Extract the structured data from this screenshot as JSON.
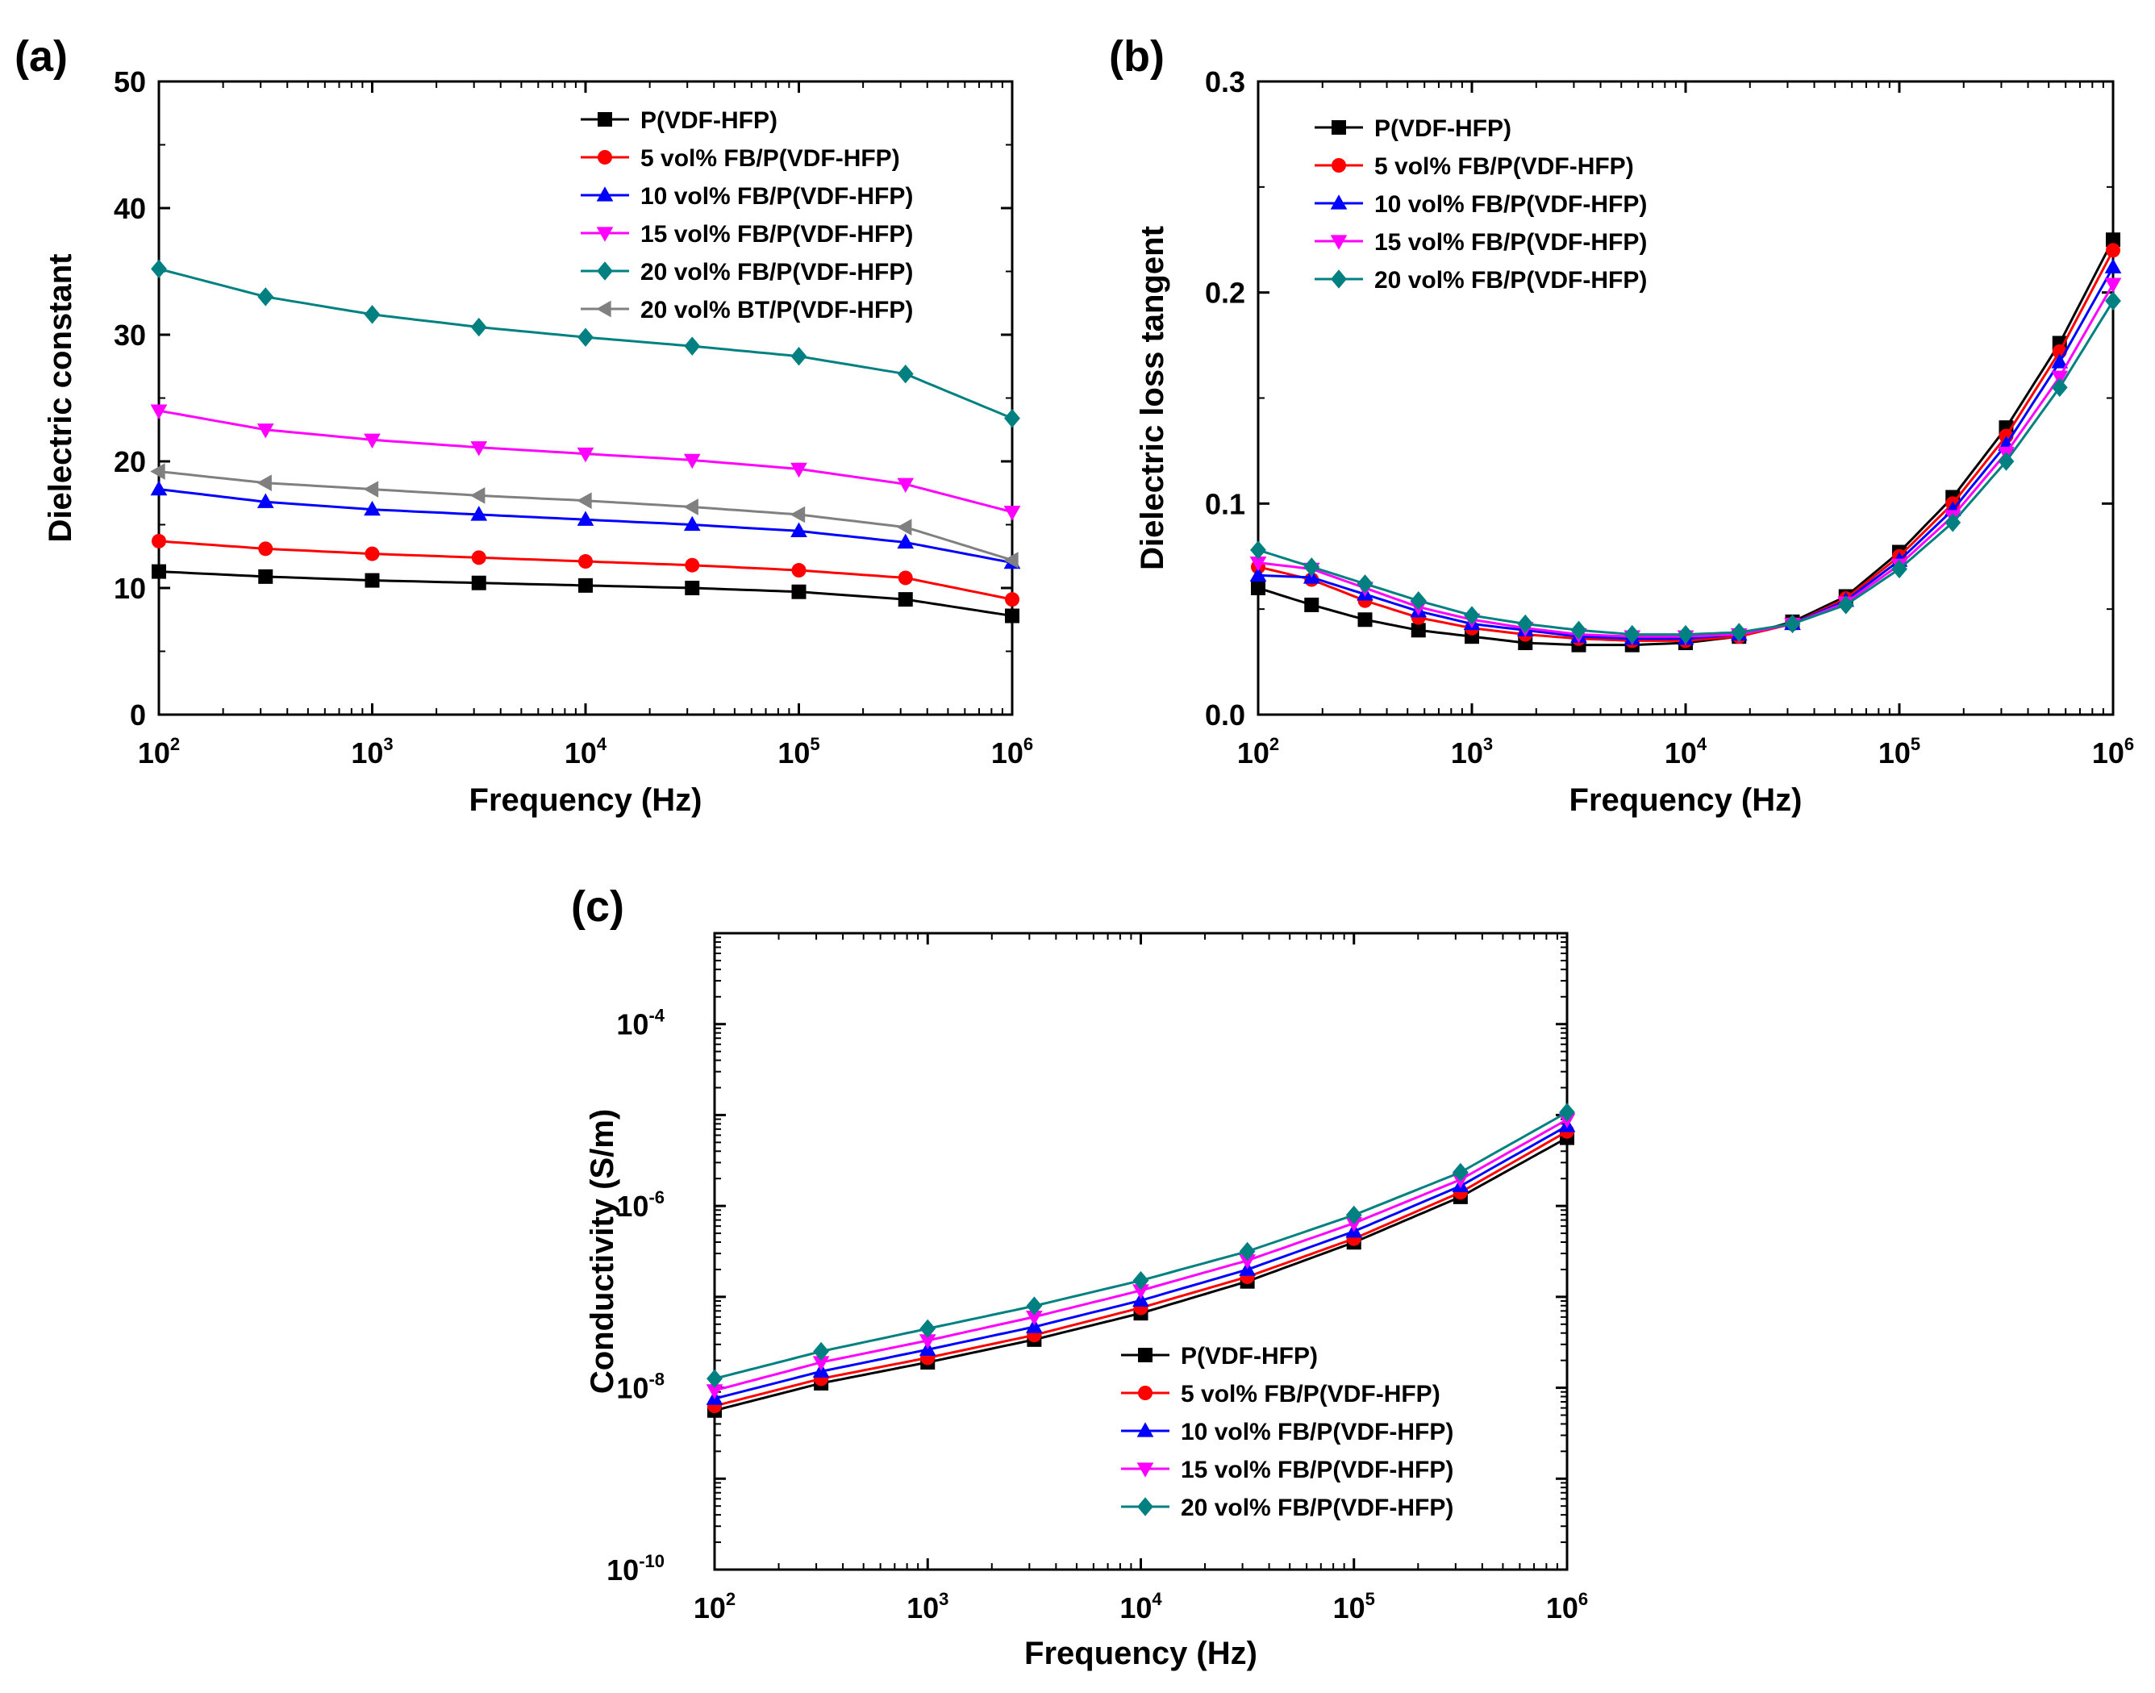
{
  "figure": {
    "series_colors": {
      "P(VDF-HFP)": "#000000",
      "5 vol% FB/P(VDF-HFP)": "#ff0000",
      "10 vol% FB/P(VDF-HFP)": "#0000ff",
      "15 vol% FB/P(VDF-HFP)": "#ff00ff",
      "20 vol% FB/P(VDF-HFP)": "#008080",
      "20 vol% BT/P(VDF-HFP)": "#808080"
    },
    "series_markers": {
      "P(VDF-HFP)": "square",
      "5 vol% FB/P(VDF-HFP)": "circle",
      "10 vol% FB/P(VDF-HFP)": "triangle-up",
      "15 vol% FB/P(VDF-HFP)": "triangle-down",
      "20 vol% FB/P(VDF-HFP)": "diamond",
      "20 vol% BT/P(VDF-HFP)": "triangle-left"
    }
  },
  "chart_data": [
    {
      "panel": "(a)",
      "type": "line",
      "xscale": "log",
      "xlabel": "Frequency (Hz)",
      "ylabel": "Dielectric constant",
      "xlim": [
        100,
        1000000
      ],
      "ylim": [
        0,
        50
      ],
      "yticks": [
        "0",
        "10",
        "20",
        "30",
        "40",
        "50"
      ],
      "legend_position": "top-right",
      "x_log": [
        2,
        2.5,
        3,
        3.5,
        4,
        4.5,
        5,
        5.5,
        6
      ],
      "series": [
        {
          "name": "P(VDF-HFP)",
          "values": [
            11.3,
            10.9,
            10.6,
            10.4,
            10.2,
            10.0,
            9.7,
            9.1,
            7.8
          ]
        },
        {
          "name": "5 vol% FB/P(VDF-HFP)",
          "values": [
            13.7,
            13.1,
            12.7,
            12.4,
            12.1,
            11.8,
            11.4,
            10.8,
            9.1
          ]
        },
        {
          "name": "10 vol% FB/P(VDF-HFP)",
          "values": [
            17.8,
            16.8,
            16.2,
            15.8,
            15.4,
            15.0,
            14.5,
            13.6,
            12.0
          ]
        },
        {
          "name": "15 vol% FB/P(VDF-HFP)",
          "values": [
            24.0,
            22.5,
            21.7,
            21.1,
            20.6,
            20.1,
            19.4,
            18.2,
            16.0
          ]
        },
        {
          "name": "20 vol% FB/P(VDF-HFP)",
          "values": [
            35.2,
            33.0,
            31.6,
            30.6,
            29.8,
            29.1,
            28.3,
            26.9,
            23.4
          ]
        },
        {
          "name": "20 vol% BT/P(VDF-HFP)",
          "values": [
            19.2,
            18.3,
            17.8,
            17.3,
            16.9,
            16.4,
            15.8,
            14.8,
            12.2
          ]
        }
      ]
    },
    {
      "panel": "(b)",
      "type": "line",
      "xscale": "log",
      "xlabel": "Frequency (Hz)",
      "ylabel": "Dielectric loss tangent",
      "xlim": [
        100,
        1000000
      ],
      "ylim": [
        0,
        0.3
      ],
      "yticks": [
        "0.0",
        "0.1",
        "0.2",
        "0.3"
      ],
      "legend_position": "top-left",
      "x_log": [
        2,
        2.25,
        2.5,
        2.75,
        3,
        3.25,
        3.5,
        3.75,
        4,
        4.25,
        4.5,
        4.75,
        5,
        5.25,
        5.5,
        5.75,
        6
      ],
      "series": [
        {
          "name": "P(VDF-HFP)",
          "values": [
            0.06,
            0.052,
            0.045,
            0.04,
            0.037,
            0.034,
            0.033,
            0.033,
            0.034,
            0.037,
            0.044,
            0.056,
            0.077,
            0.103,
            0.136,
            0.176,
            0.225
          ]
        },
        {
          "name": "5 vol% FB/P(VDF-HFP)",
          "values": [
            0.07,
            0.064,
            0.054,
            0.046,
            0.041,
            0.038,
            0.036,
            0.035,
            0.035,
            0.037,
            0.043,
            0.055,
            0.075,
            0.1,
            0.132,
            0.172,
            0.22
          ]
        },
        {
          "name": "10 vol% FB/P(VDF-HFP)",
          "values": [
            0.066,
            0.065,
            0.057,
            0.049,
            0.043,
            0.04,
            0.037,
            0.036,
            0.036,
            0.038,
            0.043,
            0.054,
            0.073,
            0.097,
            0.128,
            0.167,
            0.212
          ]
        },
        {
          "name": "15 vol% FB/P(VDF-HFP)",
          "values": [
            0.072,
            0.069,
            0.06,
            0.051,
            0.045,
            0.041,
            0.038,
            0.037,
            0.037,
            0.038,
            0.043,
            0.053,
            0.071,
            0.094,
            0.124,
            0.16,
            0.204
          ]
        },
        {
          "name": "20 vol% FB/P(VDF-HFP)",
          "values": [
            0.078,
            0.07,
            0.062,
            0.054,
            0.047,
            0.043,
            0.04,
            0.038,
            0.038,
            0.039,
            0.043,
            0.052,
            0.069,
            0.091,
            0.12,
            0.155,
            0.196
          ]
        }
      ]
    },
    {
      "panel": "(c)",
      "type": "line",
      "xscale": "log",
      "yscale": "log",
      "xlabel": "Frequency (Hz)",
      "ylabel": "Conductivity (S/m)",
      "xlim": [
        100,
        1000000
      ],
      "ylim": [
        1e-10,
        0.001
      ],
      "yticks_exp": [
        "-10",
        "-8",
        "-6",
        "-4"
      ],
      "legend_position": "bottom-right",
      "x_log": [
        2,
        2.5,
        3,
        3.5,
        4,
        4.5,
        5,
        5.5,
        6
      ],
      "series": [
        {
          "name": "P(VDF-HFP)",
          "values_log10": [
            -8.25,
            -7.95,
            -7.72,
            -7.47,
            -7.18,
            -6.83,
            -6.4,
            -5.9,
            -5.25
          ]
        },
        {
          "name": "5 vol% FB/P(VDF-HFP)",
          "values_log10": [
            -8.2,
            -7.9,
            -7.67,
            -7.42,
            -7.12,
            -6.78,
            -6.36,
            -5.85,
            -5.18
          ]
        },
        {
          "name": "10 vol% FB/P(VDF-HFP)",
          "values_log10": [
            -8.12,
            -7.82,
            -7.58,
            -7.33,
            -7.04,
            -6.7,
            -6.28,
            -5.78,
            -5.12
          ]
        },
        {
          "name": "15 vol% FB/P(VDF-HFP)",
          "values_log10": [
            -8.03,
            -7.72,
            -7.48,
            -7.22,
            -6.93,
            -6.6,
            -6.19,
            -5.71,
            -5.05
          ]
        },
        {
          "name": "20 vol% FB/P(VDF-HFP)",
          "values_log10": [
            -7.9,
            -7.6,
            -7.35,
            -7.1,
            -6.82,
            -6.5,
            -6.1,
            -5.63,
            -4.97
          ]
        }
      ]
    }
  ]
}
